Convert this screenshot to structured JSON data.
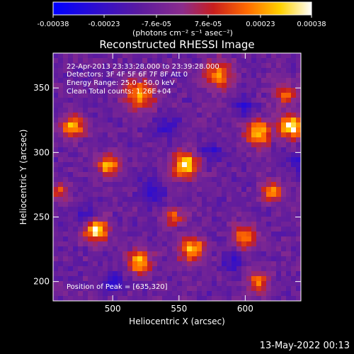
{
  "colorbar": {
    "ticks": [
      "-0.00038",
      "-0.00023",
      "-7.6e-05",
      "7.6e-05",
      "0.00023",
      "0.00038"
    ],
    "tick_values": [
      -0.00038,
      -0.00023,
      -7.6e-05,
      7.6e-05,
      0.00023,
      0.00038
    ],
    "range": [
      -0.00038,
      0.00038
    ],
    "units": "(photons cm⁻² s⁻¹ asec⁻²)",
    "palette": [
      "#0000ff",
      "#5a1aa0",
      "#8b2c8c",
      "#c81e1e",
      "#ff6a00",
      "#ffd200",
      "#ffffff"
    ]
  },
  "chart_data": {
    "type": "heatmap",
    "title": "Reconstructed RHESSI Image",
    "xlabel": "Heliocentric X (arcsec)",
    "ylabel": "Heliocentric Y (arcsec)",
    "xlim": [
      455,
      642
    ],
    "ylim": [
      185,
      377
    ],
    "x_ticks": [
      500,
      550,
      600
    ],
    "y_ticks": [
      200,
      250,
      300,
      350
    ],
    "x_tick_labels": [
      "500",
      "550",
      "600"
    ],
    "y_tick_labels": [
      "200",
      "250",
      "300",
      "350"
    ],
    "peak": {
      "x": 635,
      "y": 320
    },
    "annotations": [
      "22-Apr-2013 23:33:28.000 to 23:39:28.000",
      "Detectors: 3F 4F 5F 6F 7F 8F  Att 0",
      "Energy Range: 25.0 - 50.0 keV",
      "Clean     Total counts: 1.26E+04"
    ],
    "peak_label": "Position of Peak = [635,320]"
  },
  "footer": {
    "date": "13-May-2022 00:13"
  }
}
